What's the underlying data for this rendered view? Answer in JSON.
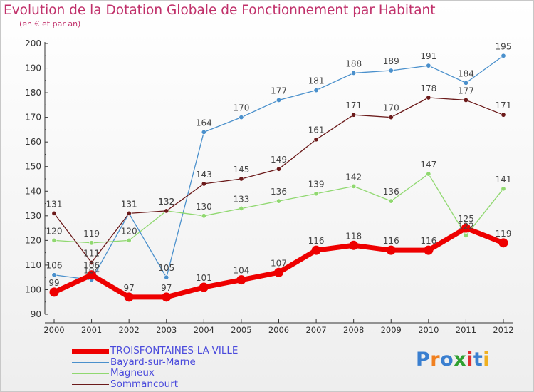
{
  "header": {
    "title": "Evolution de la Dotation Globale de Fonctionnement par Habitant",
    "subtitle": "(en € et par an)"
  },
  "logo": {
    "text": "Proxiti",
    "colors": [
      "#3a7fd0",
      "#f08020",
      "#3a7fd0",
      "#30a030",
      "#e03030",
      "#3a7fd0",
      "#f0b020"
    ]
  },
  "chart_data": {
    "type": "line",
    "title": "Evolution de la Dotation Globale de Fonctionnement par Habitant",
    "subtitle": "(en € et par an)",
    "x": [
      "2000",
      "2001",
      "2002",
      "2003",
      "2004",
      "2005",
      "2006",
      "2007",
      "2008",
      "2009",
      "2010",
      "2011",
      "2012"
    ],
    "ylim": [
      90,
      200
    ],
    "yticks": [
      90,
      100,
      110,
      120,
      130,
      140,
      150,
      160,
      170,
      180,
      190,
      200
    ],
    "grid": false,
    "legend_position": "bottom-left",
    "series": [
      {
        "name": "TROISFONTAINES-LA-VILLE",
        "color": "#ee0000",
        "values": [
          99,
          106,
          97,
          97,
          101,
          104,
          107,
          116,
          118,
          116,
          116,
          125,
          119
        ]
      },
      {
        "name": "Bayard-sur-Marne",
        "color": "#4a90cc",
        "values": [
          106,
          104,
          131,
          105,
          164,
          170,
          177,
          181,
          188,
          189,
          191,
          184,
          195
        ]
      },
      {
        "name": "Magneux",
        "color": "#90d870",
        "values": [
          120,
          119,
          120,
          132,
          130,
          133,
          136,
          139,
          142,
          136,
          147,
          122,
          141
        ]
      },
      {
        "name": "Sommancourt",
        "color": "#6b1a1a",
        "values": [
          131,
          111,
          131,
          132,
          143,
          145,
          149,
          161,
          171,
          170,
          178,
          177,
          171
        ]
      }
    ]
  }
}
